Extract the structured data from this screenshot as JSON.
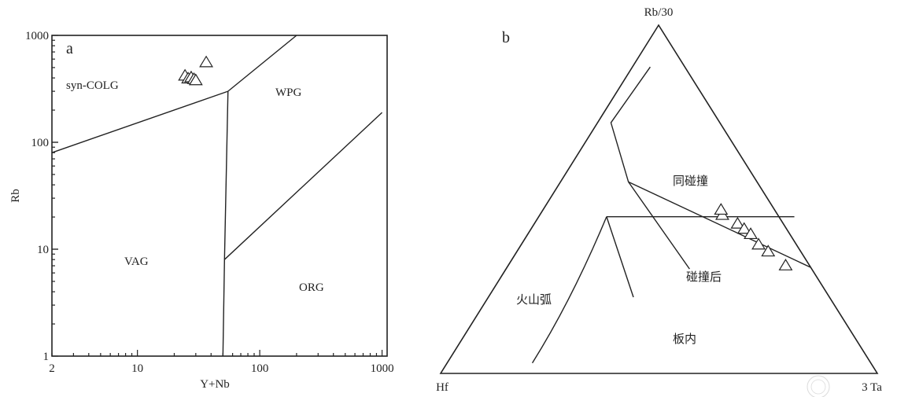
{
  "chart_data": [
    {
      "type": "scatter",
      "panel_label": "a",
      "xlabel": "Y+Nb",
      "ylabel": "Rb",
      "xscale": "log",
      "yscale": "log",
      "xlim": [
        2,
        1100
      ],
      "ylim": [
        1,
        1000
      ],
      "xticks": [
        2,
        10,
        100,
        1000
      ],
      "yticks": [
        1,
        10,
        100,
        1000
      ],
      "grid": false,
      "fields": [
        "syn-COLG",
        "WPG",
        "VAG",
        "ORG"
      ],
      "boundaries": [
        {
          "name": "VAG / syn-COLG",
          "points": [
            [
              2,
              80
            ],
            [
              55,
              300
            ]
          ]
        },
        {
          "name": "syn-COLG / WPG",
          "points": [
            [
              55,
              300
            ],
            [
              200,
              1000
            ]
          ]
        },
        {
          "name": "VAG / WPG-ORG",
          "points": [
            [
              55,
              300
            ],
            [
              51.5,
              8
            ],
            [
              50,
              1
            ]
          ]
        },
        {
          "name": "WPG / ORG",
          "points": [
            [
              51.5,
              8
            ],
            [
              1000,
              190
            ]
          ]
        }
      ],
      "series": [
        {
          "marker": "open-triangle",
          "x": [
            24.5,
            26,
            27.5,
            29,
            30,
            36.5
          ],
          "y": [
            420,
            395,
            405,
            390,
            380,
            560
          ]
        }
      ]
    },
    {
      "type": "scatter",
      "subtype": "ternary",
      "panel_label": "b",
      "apex_labels": {
        "top": "Rb/30",
        "left": "Hf",
        "right": "3 Ta"
      },
      "fields": [
        "同碰撞",
        "碰撞后",
        "火山弧",
        "板内"
      ],
      "grid": false,
      "boundaries": [
        {
          "name": "syn-collision field",
          "points": [
            [
              0.48,
              0.88
            ],
            [
              0.39,
              0.72
            ],
            [
              0.43,
              0.55
            ],
            [
              0.57,
              0.3
            ]
          ]
        },
        {
          "name": "post-collision lower edge",
          "points": [
            [
              0.38,
              0.45
            ],
            [
              0.81,
              0.45
            ]
          ]
        },
        {
          "name": "volcanic arc / within-plate",
          "points": [
            [
              0.21,
              0.03
            ],
            [
              0.3,
              0.21
            ],
            [
              0.38,
              0.45
            ]
          ]
        }
      ],
      "series": [
        {
          "marker": "open-triangle",
          "x": [
            0.645,
            0.642,
            0.68,
            0.695,
            0.71,
            0.728,
            0.75,
            0.79
          ],
          "y": [
            0.455,
            0.47,
            0.43,
            0.415,
            0.4,
            0.37,
            0.35,
            0.31
          ]
        }
      ]
    }
  ],
  "watermark": "W"
}
